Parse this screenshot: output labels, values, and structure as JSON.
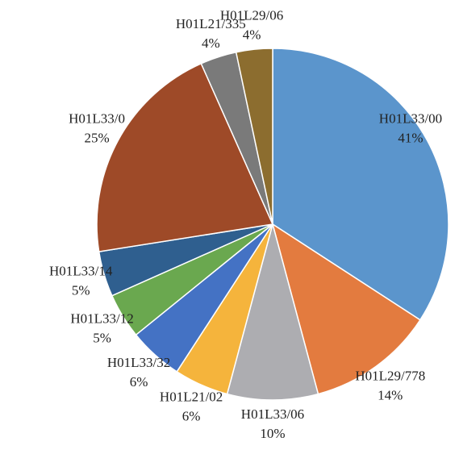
{
  "chart_data": {
    "type": "pie",
    "categories": [
      "H01L33/00",
      "H01L29/778",
      "H01L33/06",
      "H01L21/02",
      "H01L33/32",
      "H01L33/12",
      "H01L33/14",
      "H01L33/0",
      "H01L21/335",
      "H01L29/06"
    ],
    "values": [
      41,
      14,
      10,
      6,
      6,
      5,
      5,
      25,
      4,
      4
    ],
    "value_labels": [
      "41%",
      "14%",
      "10%",
      "6%",
      "6%",
      "5%",
      "5%",
      "25%",
      "4%",
      "4%"
    ],
    "colors": [
      "#5b95cc",
      "#e37b3f",
      "#adadb1",
      "#f5b43c",
      "#4472c4",
      "#6aa84f",
      "#2f5f8f",
      "#9e4a28",
      "#7a7a7a",
      "#8c6d2f"
    ]
  }
}
